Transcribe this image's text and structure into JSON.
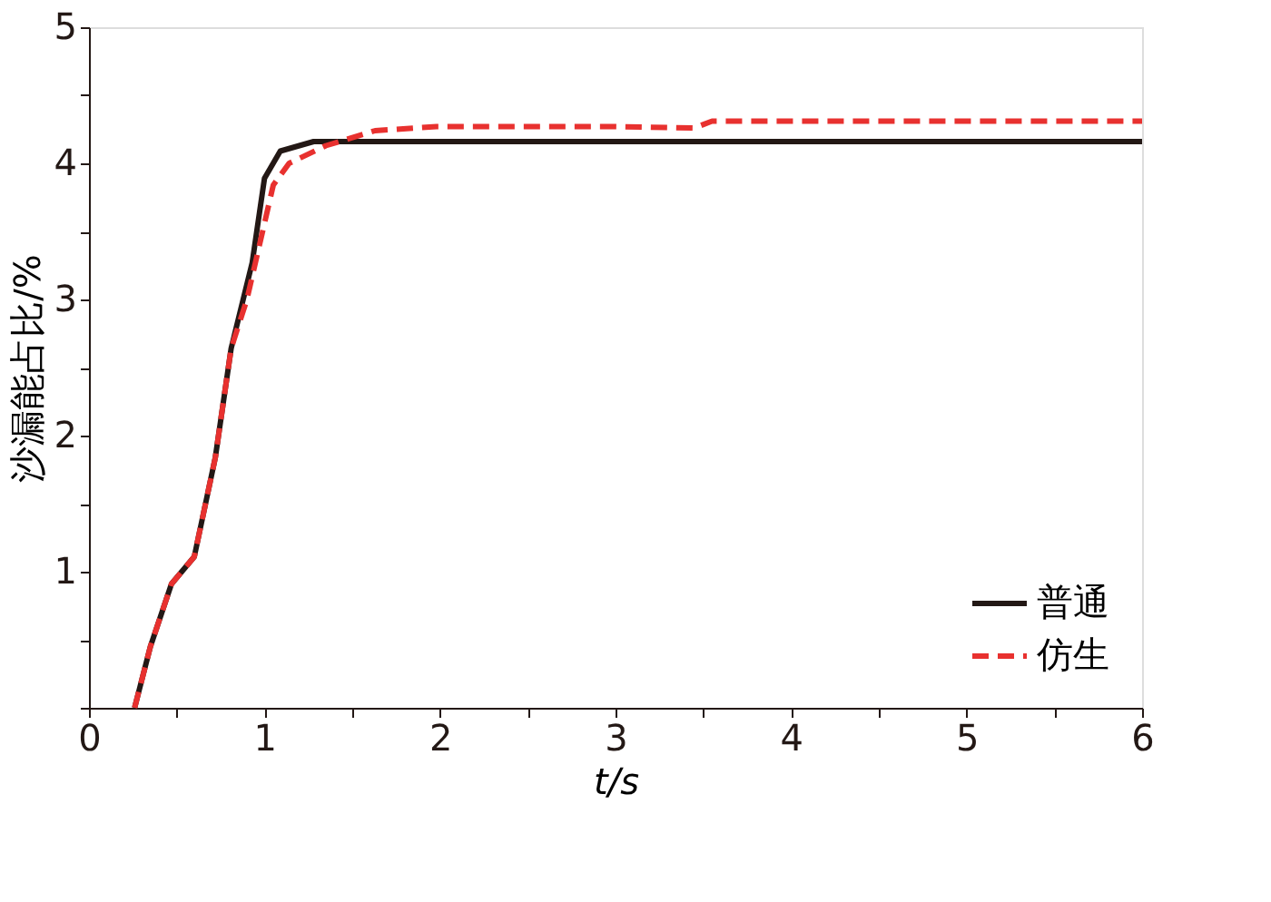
{
  "chart_data": {
    "type": "line",
    "xlabel": "t/s",
    "ylabel": "沙漏能占比/%",
    "xlim": [
      0,
      6
    ],
    "ylim": [
      0,
      5
    ],
    "xticks": [
      0,
      {
        "value": 0.5,
        "label": null
      },
      1,
      {
        "value": 1.5,
        "label": null
      },
      2,
      {
        "value": 2.5,
        "label": null
      },
      3,
      {
        "value": 3.5,
        "label": null
      },
      4,
      {
        "value": 4.5,
        "label": null
      },
      5,
      {
        "value": 5.5,
        "label": null
      },
      6
    ],
    "yticks": [
      {
        "value": 0,
        "label": null
      },
      {
        "value": 0.5,
        "label": null
      },
      1,
      {
        "value": 1.5,
        "label": null
      },
      2,
      {
        "value": 2.5,
        "label": null
      },
      3,
      {
        "value": 3.5,
        "label": null
      },
      4,
      {
        "value": 4.5,
        "label": null
      },
      5
    ],
    "grid": false,
    "legend": "bottom right",
    "marker": "none",
    "series": [
      {
        "name": "普通",
        "color": "#231815",
        "line_style": "solid",
        "x": [
          0.26,
          0.35,
          0.47,
          0.6,
          0.72,
          0.81,
          0.93,
          1.0,
          1.09,
          1.28,
          1.6,
          2,
          3,
          4,
          5,
          6
        ],
        "values": [
          0,
          0.45,
          0.91,
          1.11,
          1.84,
          2.64,
          3.27,
          3.89,
          4.09,
          4.16,
          4.16,
          4.16,
          4.16,
          4.16,
          4.16,
          4.16
        ]
      },
      {
        "name": "仿生",
        "color": "#e8312f",
        "line_style": "dashed",
        "x": [
          0.26,
          0.35,
          0.47,
          0.6,
          0.72,
          0.81,
          0.9,
          1.05,
          1.14,
          1.35,
          1.63,
          1.98,
          3.0,
          3.45,
          3.55,
          4,
          5,
          6
        ],
        "values": [
          0,
          0.45,
          0.91,
          1.11,
          1.84,
          2.64,
          3.0,
          3.84,
          4.0,
          4.13,
          4.24,
          4.27,
          4.27,
          4.26,
          4.31,
          4.31,
          4.31,
          4.31
        ]
      }
    ]
  }
}
